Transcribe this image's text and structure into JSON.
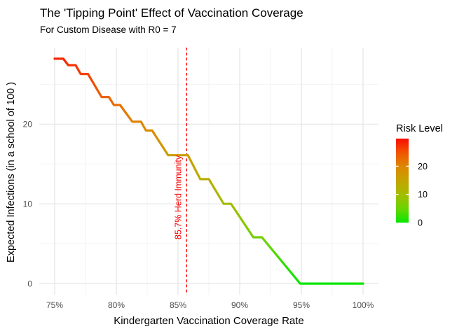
{
  "title": "The 'Tipping Point' Effect of Vaccination Coverage",
  "subtitle": "For Custom Disease with R0 = 7",
  "chart_data": {
    "type": "line",
    "title": "The 'Tipping Point' Effect of Vaccination Coverage",
    "subtitle": "For Custom Disease with R0 = 7",
    "xlabel": "Kindergarten Vaccination Coverage Rate",
    "ylabel": "Expected Infections (in a school of 100 )",
    "xlim": [
      73.75,
      101.25
    ],
    "ylim": [
      -1.4,
      29.6
    ],
    "grid": true,
    "x_ticks": {
      "values": [
        75,
        80,
        85,
        90,
        95,
        100
      ],
      "labels": [
        "75%",
        "80%",
        "85%",
        "90%",
        "95%",
        "100%"
      ]
    },
    "x_minor": [
      77.5,
      82.5,
      87.5,
      92.5,
      97.5
    ],
    "y_ticks": {
      "values": [
        0,
        10,
        20
      ],
      "labels": [
        "0",
        "10",
        "20"
      ]
    },
    "y_minor": [
      5,
      15,
      25
    ],
    "series": [
      {
        "name": "Expected Infections",
        "points": [
          [
            75.0,
            28.2
          ],
          [
            75.7,
            28.2
          ],
          [
            76.1,
            27.4
          ],
          [
            76.7,
            27.4
          ],
          [
            77.1,
            26.3
          ],
          [
            77.7,
            26.3
          ],
          [
            78.8,
            23.4
          ],
          [
            79.4,
            23.4
          ],
          [
            79.8,
            22.4
          ],
          [
            80.3,
            22.4
          ],
          [
            81.3,
            20.3
          ],
          [
            82.0,
            20.3
          ],
          [
            82.4,
            19.2
          ],
          [
            82.9,
            19.2
          ],
          [
            84.2,
            16.1
          ],
          [
            85.8,
            16.1
          ],
          [
            86.8,
            13.1
          ],
          [
            87.5,
            13.1
          ],
          [
            88.7,
            10.0
          ],
          [
            89.3,
            10.0
          ],
          [
            91.1,
            5.8
          ],
          [
            91.8,
            5.8
          ],
          [
            94.9,
            0.0
          ],
          [
            100.0,
            0.0
          ]
        ]
      }
    ],
    "vline": {
      "x": 85.7,
      "label": "85.7% Herd Immunity",
      "color": "#FF0000",
      "style": "dashed"
    },
    "color_scale": {
      "title": "Risk Level",
      "min": 0,
      "max": 29.8,
      "ticks": [
        0,
        10,
        20
      ],
      "tick_labels": [
        "0",
        "10",
        "20"
      ],
      "stops": [
        {
          "value": 0,
          "color": "#0AE600"
        },
        {
          "value": 5,
          "color": "#6AD400"
        },
        {
          "value": 10,
          "color": "#A4BC00"
        },
        {
          "value": 15,
          "color": "#C5A300"
        },
        {
          "value": 20,
          "color": "#DE8600"
        },
        {
          "value": 25,
          "color": "#F25200"
        },
        {
          "value": 29.8,
          "color": "#FA0D00"
        }
      ],
      "legend_position": "right"
    }
  }
}
